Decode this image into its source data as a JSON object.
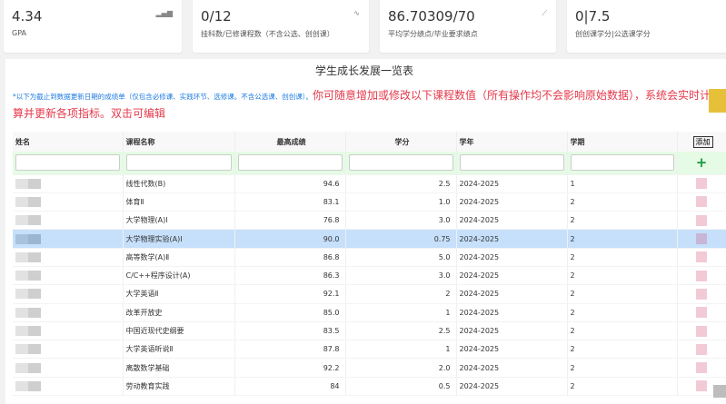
{
  "stats": [
    {
      "value": "4.34",
      "label": "GPA",
      "icon": "signal-bars-icon"
    },
    {
      "value": "0/12",
      "label": "挂科数/已修课程数（不含公选、创创课）",
      "icon": "pulse-icon"
    },
    {
      "value": "86.70309/70",
      "label": "平均学分绩点/毕业要求绩点",
      "icon": "line-chart-icon"
    },
    {
      "value": "0|7.5",
      "label": "创创课学分|公选课学分",
      "icon": ""
    }
  ],
  "panel": {
    "title": "学生成长发展一览表",
    "note_blue": "*以下为截止到数据更新日期的成绩单（仅包含必修课、实践环节、选修课。不含公选课、创创课）。",
    "note_red": "你可随意增加或修改以下课程数值（所有操作均不会影响原始数据），系统会实时计算并更新各项指标。双击可编辑"
  },
  "table": {
    "headers": [
      "姓名",
      "课程名称",
      "最高成绩",
      "学分",
      "学年",
      "学期"
    ],
    "add_label": "添加",
    "add_icon": "plus-icon",
    "rows": [
      {
        "course": "线性代数(B)",
        "score": "94.6",
        "credit": "2.5",
        "year": "2024-2025",
        "term": "1"
      },
      {
        "course": "体育Ⅱ",
        "score": "83.1",
        "credit": "1.0",
        "year": "2024-2025",
        "term": "2"
      },
      {
        "course": "大学物理(A)Ⅰ",
        "score": "76.8",
        "credit": "3.0",
        "year": "2024-2025",
        "term": "2"
      },
      {
        "course": "大学物理实验(A)Ⅰ",
        "score": "90.0",
        "credit": "0.75",
        "year": "2024-2025",
        "term": "2",
        "selected": true
      },
      {
        "course": "高等数学(A)Ⅱ",
        "score": "86.8",
        "credit": "5.0",
        "year": "2024-2025",
        "term": "2"
      },
      {
        "course": "C/C++程序设计(A)",
        "score": "86.3",
        "credit": "3.0",
        "year": "2024-2025",
        "term": "2"
      },
      {
        "course": "大学英语Ⅱ",
        "score": "92.1",
        "credit": "2",
        "year": "2024-2025",
        "term": "2"
      },
      {
        "course": "改革开放史",
        "score": "85.0",
        "credit": "1",
        "year": "2024-2025",
        "term": "2"
      },
      {
        "course": "中国近现代史纲要",
        "score": "83.5",
        "credit": "2.5",
        "year": "2024-2025",
        "term": "2"
      },
      {
        "course": "大学英语听说Ⅱ",
        "score": "87.8",
        "credit": "1",
        "year": "2024-2025",
        "term": "2"
      },
      {
        "course": "离散数学基础",
        "score": "92.2",
        "credit": "2.0",
        "year": "2024-2025",
        "term": "2"
      },
      {
        "course": "劳动教育实践",
        "score": "84",
        "credit": "0.5",
        "year": "2024-2025",
        "term": "2"
      }
    ]
  }
}
